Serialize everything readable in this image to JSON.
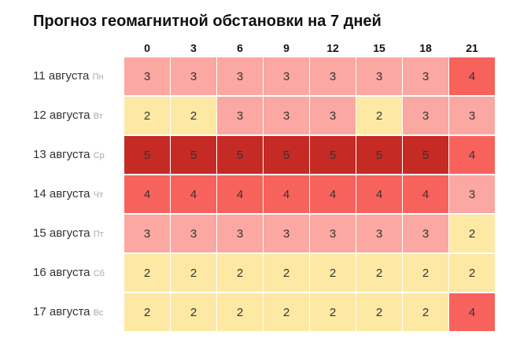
{
  "title": "Прогноз геомагнитной обстановки на 7 дней",
  "hours": [
    "0",
    "3",
    "6",
    "9",
    "12",
    "15",
    "18",
    "21"
  ],
  "level_colors": {
    "2": "#fde8a4",
    "3": "#fba7a2",
    "4": "#f8625d",
    "5": "#c52a25"
  },
  "rows": [
    {
      "date": "11 августа",
      "weekday": "Пн",
      "values": [
        "3",
        "3",
        "3",
        "3",
        "3",
        "3",
        "3",
        "4"
      ]
    },
    {
      "date": "12 августа",
      "weekday": "Вт",
      "values": [
        "2",
        "2",
        "3",
        "3",
        "3",
        "2",
        "3",
        "3"
      ]
    },
    {
      "date": "13 августа",
      "weekday": "Ср",
      "values": [
        "5",
        "5",
        "5",
        "5",
        "5",
        "5",
        "5",
        "4"
      ]
    },
    {
      "date": "14 августа",
      "weekday": "Чт",
      "values": [
        "4",
        "4",
        "4",
        "4",
        "4",
        "4",
        "4",
        "3"
      ]
    },
    {
      "date": "15 августа",
      "weekday": "Пт",
      "values": [
        "3",
        "3",
        "3",
        "3",
        "3",
        "3",
        "3",
        "2"
      ]
    },
    {
      "date": "16 августа",
      "weekday": "Сб",
      "values": [
        "2",
        "2",
        "2",
        "2",
        "2",
        "2",
        "2",
        "2"
      ]
    },
    {
      "date": "17 августа",
      "weekday": "Вс",
      "values": [
        "2",
        "2",
        "2",
        "2",
        "2",
        "2",
        "2",
        "4"
      ]
    }
  ]
}
